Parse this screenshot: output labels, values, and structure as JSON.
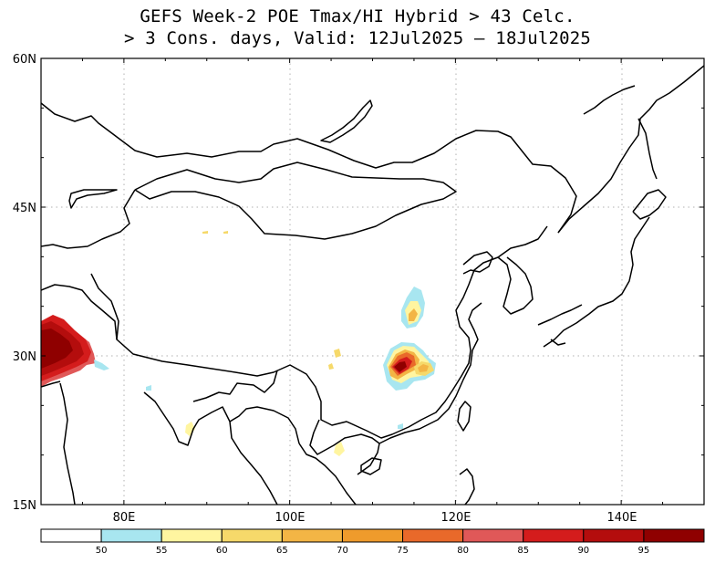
{
  "title": {
    "line1": "GEFS Week-2 POE Tmax/HI Hybrid > 43 Celc.",
    "line2": "> 3 Cons. days, Valid: 12Jul2025 – 18Jul2025"
  },
  "map": {
    "lon_range": [
      70,
      150
    ],
    "lat_range": [
      15,
      60
    ],
    "lat_ticks": [
      {
        "value": 60,
        "label": "60N"
      },
      {
        "value": 45,
        "label": "45N"
      },
      {
        "value": 30,
        "label": "30N"
      },
      {
        "value": 15,
        "label": "15N"
      }
    ],
    "lon_ticks": [
      {
        "value": 80,
        "label": "80E"
      },
      {
        "value": 100,
        "label": "100E"
      },
      {
        "value": 120,
        "label": "120E"
      },
      {
        "value": 140,
        "label": "140E"
      }
    ],
    "grid": true,
    "field": "probability of exceedance (%)",
    "probability_hotspots": [
      {
        "region": "Pakistan / NW India",
        "peak_percent": 95
      },
      {
        "region": "Central China (Hubei)",
        "peak_percent": 92
      },
      {
        "region": "Sichuan basin",
        "peak_percent": 65
      },
      {
        "region": "Southern China",
        "peak_percent": 60
      }
    ]
  },
  "colorbar": {
    "levels": [
      "50",
      "55",
      "60",
      "65",
      "70",
      "75",
      "80",
      "85",
      "90",
      "95"
    ],
    "colors": [
      "#ffffff",
      "#a8e6f0",
      "#fff5a0",
      "#f6d96a",
      "#f3b545",
      "#ef9b2c",
      "#e9692a",
      "#e05858",
      "#d41c1c",
      "#b40d0d",
      "#8f0000"
    ]
  }
}
